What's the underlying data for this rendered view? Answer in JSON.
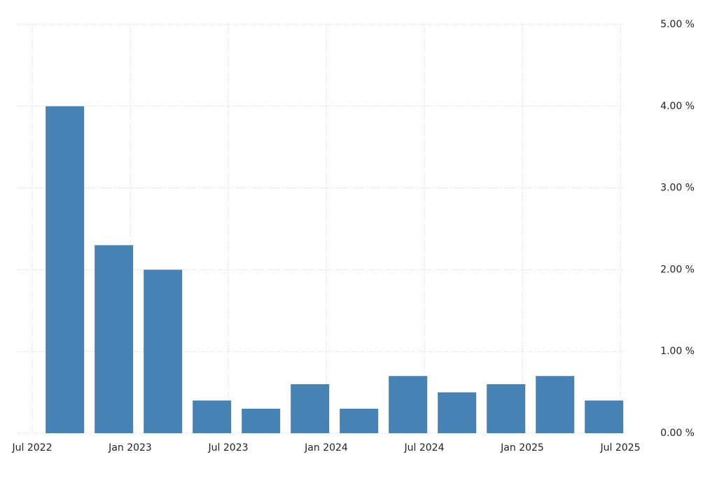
{
  "chart_data": {
    "type": "bar",
    "x": [
      "2022-09",
      "2022-12",
      "2023-03",
      "2023-06",
      "2023-09",
      "2023-12",
      "2024-03",
      "2024-06",
      "2024-09",
      "2024-12",
      "2025-03",
      "2025-06"
    ],
    "values": [
      4.0,
      2.3,
      2.0,
      0.4,
      0.3,
      0.6,
      0.3,
      0.7,
      0.5,
      0.6,
      0.7,
      0.4
    ],
    "color": "#4682b4",
    "xlim": [
      "2022-07",
      "2025-07"
    ],
    "xticks": [
      {
        "value": "2022-07",
        "label": "Jul 2022"
      },
      {
        "value": "2023-01",
        "label": "Jan 2023"
      },
      {
        "value": "2023-07",
        "label": "Jul 2023"
      },
      {
        "value": "2024-01",
        "label": "Jan 2024"
      },
      {
        "value": "2024-07",
        "label": "Jul 2024"
      },
      {
        "value": "2025-01",
        "label": "Jan 2025"
      },
      {
        "value": "2025-07",
        "label": "Jul 2025"
      }
    ],
    "ylim": [
      0,
      5
    ],
    "yticks": [
      {
        "value": 0,
        "label": "0.00 %"
      },
      {
        "value": 1,
        "label": "1.00 %"
      },
      {
        "value": 2,
        "label": "2.00 %"
      },
      {
        "value": 3,
        "label": "3.00 %"
      },
      {
        "value": 4,
        "label": "4.00 %"
      },
      {
        "value": 5,
        "label": "5.00 %"
      }
    ],
    "grid": true
  }
}
